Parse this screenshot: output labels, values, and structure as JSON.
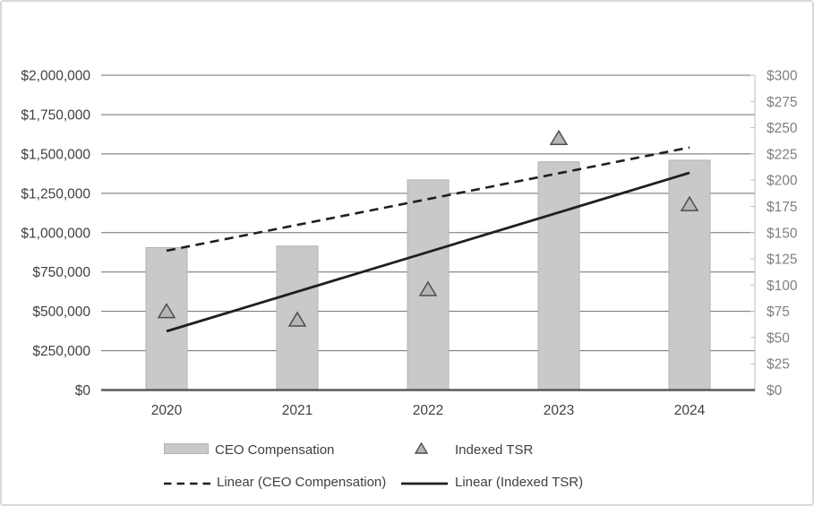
{
  "chart_data": {
    "type": "bar",
    "subtype": "combo-bar-scatter-trendlines",
    "title": "",
    "categories": [
      "2020",
      "2021",
      "2022",
      "2023",
      "2024"
    ],
    "series": [
      {
        "name": "CEO Compensation",
        "type": "bar",
        "axis": "left",
        "values": [
          905000,
          915000,
          1335000,
          1450000,
          1460000
        ]
      },
      {
        "name": "Indexed TSR",
        "type": "scatter",
        "marker": "triangle",
        "axis": "right",
        "values": [
          75,
          67,
          96,
          240,
          177
        ]
      },
      {
        "name": "Linear (CEO Compensation)",
        "type": "trendline",
        "style": "dashed",
        "axis": "left",
        "endpoints": [
          885000,
          1541000
        ]
      },
      {
        "name": "Linear (Indexed TSR)",
        "type": "trendline",
        "style": "solid",
        "axis": "right",
        "endpoints": [
          56,
          207
        ]
      }
    ],
    "left_axis": {
      "min": 0,
      "max": 2000000,
      "step": 250000,
      "tick_labels": [
        "$0",
        "$250,000",
        "$500,000",
        "$750,000",
        "$1,000,000",
        "$1,250,000",
        "$1,500,000",
        "$1,750,000",
        "$2,000,000"
      ]
    },
    "right_axis": {
      "min": 0,
      "max": 300,
      "step": 25,
      "tick_labels": [
        "$0",
        "$25",
        "$50",
        "$75",
        "$100",
        "$125",
        "$150",
        "$175",
        "$200",
        "$225",
        "$250",
        "$275",
        "$300"
      ]
    },
    "grid": true,
    "legend_position": "bottom"
  },
  "legend": {
    "items": [
      {
        "label": "CEO Compensation",
        "marker": "bar-swatch"
      },
      {
        "label": "Indexed TSR",
        "marker": "triangle"
      },
      {
        "label": "Linear (CEO Compensation)",
        "marker": "dashed-line"
      },
      {
        "label": "Linear (Indexed TSR)",
        "marker": "solid-line"
      }
    ]
  },
  "colors": {
    "bar_fill": "#c9c9ca",
    "bar_border": "#b3b3b3",
    "triangle_fill": "#b5b5b8",
    "triangle_border": "#4d4d4d",
    "trendline": "#1f1f1f",
    "gridline": "#6e6e6e",
    "axis_line": "#595959",
    "right_axis_line": "#bfbfbf",
    "left_label": "#3f3f3f",
    "right_label": "#7f7f7f",
    "x_label": "#3f3f3f",
    "legend_text": "#3f3f3f",
    "frame_border": "#d9d9d9",
    "background": "#ffffff"
  }
}
